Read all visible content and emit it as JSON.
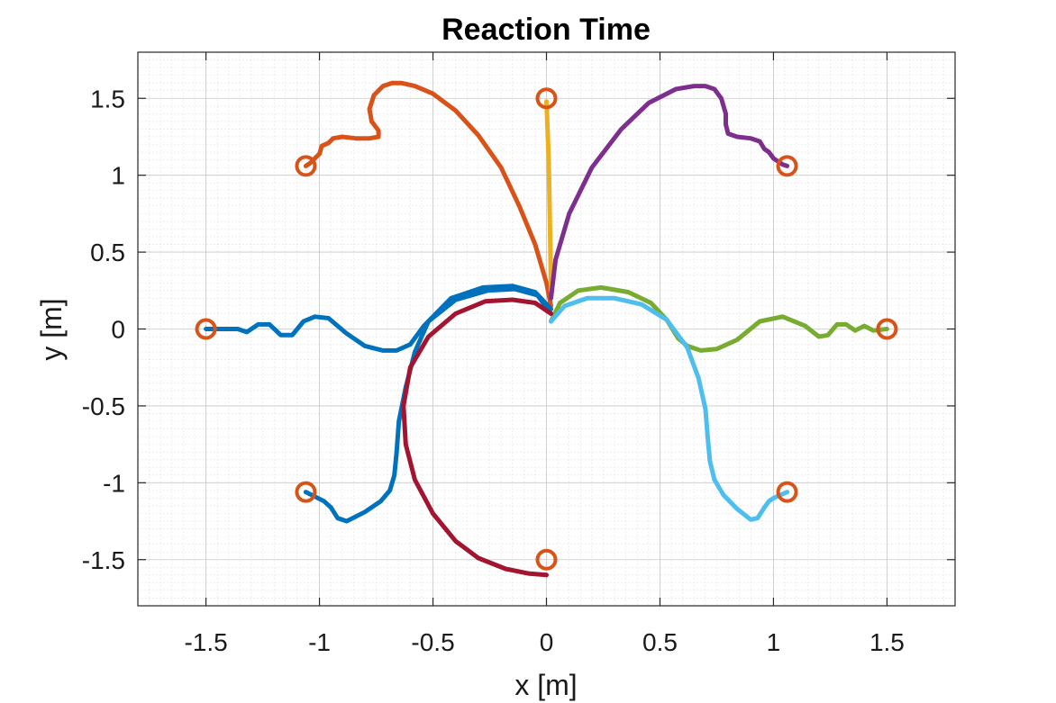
{
  "chart_data": {
    "type": "line",
    "title": "Reaction Time",
    "xlabel": "x [m]",
    "ylabel": "y [m]",
    "xlim": [
      -1.8,
      1.8
    ],
    "ylim": [
      -1.8,
      1.8
    ],
    "xticks": [
      -1.5,
      -1,
      -0.5,
      0,
      0.5,
      1,
      1.5
    ],
    "xtick_labels": [
      "-1.5",
      "-1",
      "-0.5",
      "0",
      "0.5",
      "1",
      "1.5"
    ],
    "yticks": [
      -1.5,
      -1,
      -0.5,
      0,
      0.5,
      1,
      1.5
    ],
    "ytick_labels": [
      "-1.5",
      "-1",
      "-0.5",
      "0",
      "0.5",
      "1",
      "1.5"
    ],
    "grid": "minor",
    "targets": {
      "color": "#d95319",
      "points": [
        [
          1.5,
          0
        ],
        [
          1.06,
          1.06
        ],
        [
          0,
          1.5
        ],
        [
          -1.06,
          1.06
        ],
        [
          -1.5,
          0
        ],
        [
          -1.06,
          -1.06
        ],
        [
          0,
          -1.5
        ],
        [
          1.06,
          -1.06
        ]
      ]
    },
    "series": [
      {
        "color": "#d95319",
        "x": [
          0.02,
          0.0,
          -0.05,
          -0.12,
          -0.2,
          -0.3,
          -0.4,
          -0.5,
          -0.58,
          -0.64,
          -0.68,
          -0.72,
          -0.76,
          -0.78,
          -0.77,
          -0.74,
          -0.74,
          -0.78,
          -0.84,
          -0.9,
          -0.94,
          -0.96,
          -0.99,
          -1.0,
          -1.02,
          -1.04,
          -1.06
        ],
        "y": [
          0.15,
          0.3,
          0.55,
          0.8,
          1.05,
          1.26,
          1.42,
          1.53,
          1.58,
          1.6,
          1.6,
          1.58,
          1.52,
          1.43,
          1.35,
          1.29,
          1.25,
          1.24,
          1.24,
          1.25,
          1.24,
          1.21,
          1.19,
          1.14,
          1.11,
          1.08,
          1.06
        ]
      },
      {
        "color": "#edb120",
        "x": [
          0.02,
          0.015,
          0.01,
          0.0
        ],
        "y": [
          0.25,
          0.7,
          1.1,
          1.48
        ]
      },
      {
        "color": "#7e2f8e",
        "x": [
          0.02,
          0.04,
          0.1,
          0.2,
          0.33,
          0.45,
          0.57,
          0.65,
          0.7,
          0.74,
          0.77,
          0.79,
          0.79,
          0.8,
          0.84,
          0.9,
          0.94,
          0.96,
          0.98,
          1.0,
          1.02,
          1.04,
          1.06
        ],
        "y": [
          0.2,
          0.45,
          0.75,
          1.05,
          1.3,
          1.47,
          1.56,
          1.58,
          1.58,
          1.56,
          1.5,
          1.4,
          1.33,
          1.27,
          1.25,
          1.24,
          1.22,
          1.17,
          1.15,
          1.11,
          1.09,
          1.07,
          1.06
        ]
      },
      {
        "color": "#77ac30",
        "x": [
          0.02,
          0.06,
          0.14,
          0.24,
          0.36,
          0.46,
          0.53,
          0.58,
          0.62,
          0.68,
          0.75,
          0.84,
          0.94,
          1.04,
          1.14,
          1.2,
          1.24,
          1.28,
          1.32,
          1.36,
          1.4,
          1.44,
          1.5
        ],
        "y": [
          0.05,
          0.17,
          0.25,
          0.27,
          0.24,
          0.17,
          0.06,
          -0.06,
          -0.11,
          -0.14,
          -0.13,
          -0.07,
          0.05,
          0.08,
          0.02,
          -0.05,
          -0.04,
          0.03,
          0.03,
          -0.01,
          0.02,
          -0.01,
          0.0
        ]
      },
      {
        "color": "#4dbeee",
        "x": [
          0.02,
          0.08,
          0.18,
          0.3,
          0.42,
          0.53,
          0.62,
          0.67,
          0.7,
          0.71,
          0.72,
          0.74,
          0.78,
          0.84,
          0.9,
          0.93,
          0.96,
          0.98,
          1.0,
          1.03,
          1.06
        ],
        "y": [
          0.05,
          0.15,
          0.2,
          0.2,
          0.16,
          0.06,
          -0.12,
          -0.32,
          -0.52,
          -0.7,
          -0.86,
          -0.98,
          -1.08,
          -1.17,
          -1.24,
          -1.23,
          -1.16,
          -1.12,
          -1.1,
          -1.08,
          -1.06
        ]
      },
      {
        "color": "#0072bd",
        "x": [
          0.02,
          -0.04,
          -0.14,
          -0.26,
          -0.4,
          -0.52,
          -0.58,
          -0.62,
          -0.65,
          -0.66,
          -0.67,
          -0.69,
          -0.73,
          -0.8,
          -0.88,
          -0.92,
          -0.95,
          -0.98,
          -1.02,
          -1.06
        ],
        "y": [
          0.1,
          0.22,
          0.26,
          0.25,
          0.19,
          0.05,
          -0.15,
          -0.38,
          -0.6,
          -0.8,
          -0.95,
          -1.05,
          -1.12,
          -1.19,
          -1.25,
          -1.23,
          -1.16,
          -1.12,
          -1.09,
          -1.06
        ]
      },
      {
        "color": "#0072bd",
        "x": [
          0.02,
          -0.05,
          -0.15,
          -0.28,
          -0.42,
          -0.54,
          -0.6,
          -0.66,
          -0.72,
          -0.8,
          -0.88,
          -0.96,
          -1.02,
          -1.07,
          -1.12,
          -1.17,
          -1.22,
          -1.27,
          -1.32,
          -1.36,
          -1.4,
          -1.44,
          -1.5
        ],
        "y": [
          0.13,
          0.24,
          0.28,
          0.27,
          0.2,
          0.02,
          -0.1,
          -0.14,
          -0.14,
          -0.11,
          -0.03,
          0.07,
          0.08,
          0.05,
          -0.04,
          -0.04,
          0.03,
          0.03,
          -0.02,
          0.0,
          0.0,
          0.0,
          0.0
        ]
      },
      {
        "color": "#a2142f",
        "x": [
          0.02,
          -0.05,
          -0.15,
          -0.27,
          -0.4,
          -0.52,
          -0.6,
          -0.63,
          -0.62,
          -0.58,
          -0.5,
          -0.4,
          -0.3,
          -0.18,
          -0.08,
          0.0
        ],
        "y": [
          0.1,
          0.17,
          0.19,
          0.18,
          0.1,
          -0.05,
          -0.25,
          -0.5,
          -0.75,
          -0.98,
          -1.2,
          -1.38,
          -1.49,
          -1.56,
          -1.59,
          -1.6
        ]
      }
    ]
  }
}
